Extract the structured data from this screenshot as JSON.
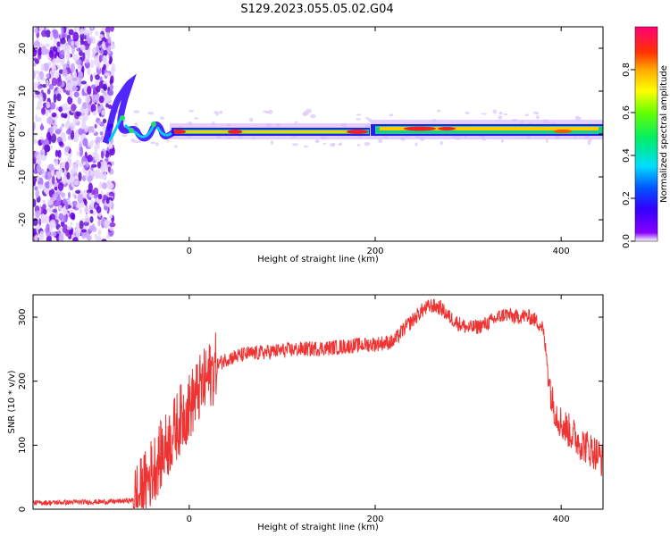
{
  "title": "S129.2023.055.05.02.G04",
  "chart_data": [
    {
      "type": "heatmap",
      "name": "spectrogram",
      "xlabel": "Height of straight line (km)",
      "ylabel": "Frequency (Hz)",
      "xlim": [
        -168,
        445
      ],
      "ylim": [
        -25,
        25
      ],
      "xticks": [
        0,
        200,
        400
      ],
      "yticks": [
        -20,
        -10,
        0,
        10,
        20
      ],
      "colorbar": {
        "label": "Normalized spectral amplitude",
        "range": [
          0,
          1
        ],
        "ticks": [
          0.0,
          0.2,
          0.4,
          0.6,
          0.8
        ]
      },
      "ridge": [
        {
          "x": -90,
          "y": -3
        },
        {
          "x": -85,
          "y": 0
        },
        {
          "x": -80,
          "y": 4
        },
        {
          "x": -75,
          "y": 1
        },
        {
          "x": -70,
          "y": -1
        },
        {
          "x": -62,
          "y": 2
        },
        {
          "x": -55,
          "y": -2
        },
        {
          "x": -50,
          "y": -1
        },
        {
          "x": -45,
          "y": -2
        },
        {
          "x": -38,
          "y": 2
        },
        {
          "x": -32,
          "y": 0
        },
        {
          "x": -25,
          "y": -1
        },
        {
          "x": -15,
          "y": 0
        },
        {
          "x": 200,
          "y": 0
        },
        {
          "x": 210,
          "y": 1
        },
        {
          "x": 445,
          "y": 1
        }
      ]
    },
    {
      "type": "line",
      "name": "snr",
      "xlabel": "Height of straight line (km)",
      "ylabel": "SNR (10 * v/v)",
      "xlim": [
        -168,
        445
      ],
      "ylim": [
        0,
        335
      ],
      "xticks": [
        0,
        200,
        400
      ],
      "yticks": [
        0,
        100,
        200,
        300
      ],
      "color": "#ee3333",
      "series": [
        {
          "name": "SNR",
          "x": [
            -168,
            -120,
            -80,
            -60,
            -50,
            -40,
            -30,
            -20,
            -10,
            0,
            10,
            20,
            30,
            40,
            60,
            80,
            100,
            120,
            150,
            180,
            200,
            220,
            230,
            240,
            250,
            260,
            270,
            280,
            290,
            300,
            310,
            320,
            330,
            340,
            350,
            360,
            370,
            380,
            385,
            390,
            395,
            400,
            410,
            420,
            430,
            440,
            445
          ],
          "y": [
            10,
            11,
            12,
            14,
            30,
            60,
            85,
            110,
            140,
            160,
            185,
            205,
            225,
            235,
            242,
            245,
            248,
            250,
            252,
            256,
            258,
            262,
            280,
            295,
            310,
            318,
            315,
            300,
            290,
            283,
            285,
            290,
            298,
            305,
            300,
            302,
            298,
            285,
            230,
            170,
            150,
            135,
            120,
            105,
            95,
            85,
            75
          ]
        }
      ]
    }
  ]
}
